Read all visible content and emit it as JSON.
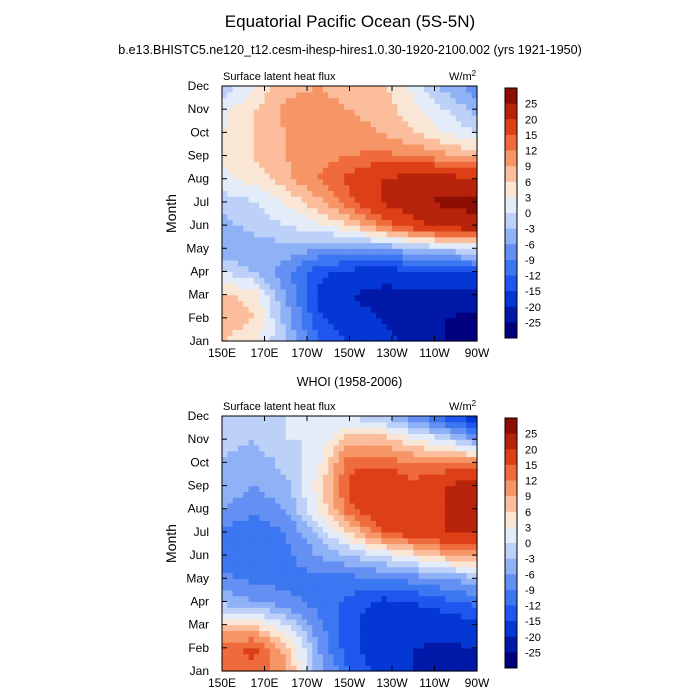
{
  "figure": {
    "title": "Equatorial Pacific Ocean (5S-5N)",
    "subtitle": "b.e13.BHISTC5.ne120_t12.cesm-ihesp-hires1.0.30-1920-2100.002 (yrs 1921-1950)"
  },
  "chart_data": [
    {
      "type": "heatmap",
      "title": "",
      "variable_label": "Surface latent heat flux",
      "units_label": "W/m",
      "units_superscript": "2",
      "xlabel": "",
      "ylabel": "Month",
      "x_ticks": [
        "150E",
        "170E",
        "170W",
        "150W",
        "130W",
        "110W",
        "90W"
      ],
      "x_tick_lon": [
        150,
        170,
        190,
        210,
        230,
        250,
        270
      ],
      "xlim": [
        150,
        270
      ],
      "y_ticks": [
        "Jan",
        "Feb",
        "Mar",
        "Apr",
        "May",
        "Jun",
        "Jul",
        "Aug",
        "Sep",
        "Oct",
        "Nov",
        "Dec"
      ],
      "ylim": [
        1,
        12
      ],
      "contour_levels": [
        -25,
        -20,
        -15,
        -12,
        -9,
        -6,
        -3,
        0,
        3,
        6,
        9,
        12,
        15,
        20,
        25
      ],
      "colorbar_labels": [
        "25",
        "20",
        "15",
        "12",
        "9",
        "6",
        "3",
        "0",
        "-3",
        "-6",
        "-9",
        "-12",
        "-15",
        "-20",
        "-25"
      ],
      "colors": [
        "#00007f",
        "#0019a8",
        "#0437d4",
        "#1f57ee",
        "#3c77f2",
        "#648ff3",
        "#8fb1f6",
        "#bcd0f8",
        "#e4ecfa",
        "#fae6d4",
        "#fbbd9b",
        "#f69566",
        "#ef6a3c",
        "#dd3f17",
        "#b7220a",
        "#8c0e02"
      ],
      "lon": [
        150,
        165,
        180,
        195,
        210,
        225,
        240,
        255,
        270
      ],
      "months": [
        1,
        2,
        3,
        4,
        5,
        6,
        7,
        8,
        9,
        10,
        11,
        12
      ],
      "values": [
        [
          6,
          4,
          -3,
          -12,
          -15,
          -18,
          -22,
          -25,
          -26
        ],
        [
          8,
          6,
          -4,
          -14,
          -18,
          -20,
          -23,
          -25,
          -26
        ],
        [
          7,
          5,
          -6,
          -16,
          -20,
          -22,
          -22,
          -23,
          -23
        ],
        [
          0,
          -3,
          -8,
          -14,
          -16,
          -17,
          -16,
          -15,
          -14
        ],
        [
          -6,
          -5,
          -4,
          -6,
          -7,
          -6,
          -4,
          -2,
          0
        ],
        [
          -4,
          -2,
          0,
          2,
          6,
          12,
          18,
          22,
          24
        ],
        [
          -2,
          0,
          3,
          8,
          14,
          20,
          24,
          26,
          26
        ],
        [
          2,
          4,
          8,
          12,
          16,
          20,
          22,
          22,
          20
        ],
        [
          4,
          6,
          9,
          11,
          12,
          13,
          12,
          10,
          8
        ],
        [
          3,
          6,
          9,
          10,
          10,
          9,
          6,
          3,
          0
        ],
        [
          2,
          6,
          10,
          10,
          9,
          8,
          4,
          0,
          -4
        ],
        [
          -3,
          3,
          8,
          9,
          8,
          7,
          2,
          -4,
          -8
        ]
      ]
    },
    {
      "type": "heatmap",
      "title": "WHOI (1958-2006)",
      "variable_label": "Surface latent heat flux",
      "units_label": "W/m",
      "units_superscript": "2",
      "xlabel": "",
      "ylabel": "Month",
      "x_ticks": [
        "150E",
        "170E",
        "170W",
        "150W",
        "130W",
        "110W",
        "90W"
      ],
      "x_tick_lon": [
        150,
        170,
        190,
        210,
        230,
        250,
        270
      ],
      "xlim": [
        150,
        270
      ],
      "y_ticks": [
        "Jan",
        "Feb",
        "Mar",
        "Apr",
        "May",
        "Jun",
        "Jul",
        "Aug",
        "Sep",
        "Oct",
        "Nov",
        "Dec"
      ],
      "ylim": [
        1,
        12
      ],
      "contour_levels": [
        -25,
        -20,
        -15,
        -12,
        -9,
        -6,
        -3,
        0,
        3,
        6,
        9,
        12,
        15,
        20,
        25
      ],
      "colorbar_labels": [
        "25",
        "20",
        "15",
        "12",
        "9",
        "6",
        "3",
        "0",
        "-3",
        "-6",
        "-9",
        "-12",
        "-15",
        "-20",
        "-25"
      ],
      "colors": [
        "#00007f",
        "#0019a8",
        "#0437d4",
        "#1f57ee",
        "#3c77f2",
        "#648ff3",
        "#8fb1f6",
        "#bcd0f8",
        "#e4ecfa",
        "#fae6d4",
        "#fbbd9b",
        "#f69566",
        "#ef6a3c",
        "#dd3f17",
        "#b7220a",
        "#8c0e02"
      ],
      "lon": [
        150,
        165,
        180,
        195,
        210,
        225,
        240,
        255,
        270
      ],
      "months": [
        1,
        2,
        3,
        4,
        5,
        6,
        7,
        8,
        9,
        10,
        11,
        12
      ],
      "values": [
        [
          12,
          14,
          10,
          -4,
          -12,
          -16,
          -20,
          -22,
          -22
        ],
        [
          14,
          16,
          8,
          -6,
          -14,
          -18,
          -20,
          -21,
          -20
        ],
        [
          6,
          6,
          0,
          -8,
          -14,
          -18,
          -18,
          -18,
          -16
        ],
        [
          -4,
          -6,
          -8,
          -10,
          -13,
          -16,
          -15,
          -13,
          -11
        ],
        [
          -8,
          -10,
          -10,
          -10,
          -10,
          -9,
          -8,
          -6,
          -4
        ],
        [
          -12,
          -12,
          -10,
          -6,
          -3,
          0,
          4,
          8,
          10
        ],
        [
          -10,
          -12,
          -9,
          -3,
          6,
          14,
          18,
          20,
          21
        ],
        [
          -6,
          -8,
          -6,
          3,
          14,
          20,
          20,
          20,
          20
        ],
        [
          -4,
          -6,
          -4,
          4,
          16,
          20,
          16,
          20,
          24
        ],
        [
          -3,
          -5,
          -2,
          2,
          14,
          14,
          12,
          12,
          12
        ],
        [
          -2,
          -3,
          0,
          0,
          8,
          8,
          4,
          0,
          -6
        ],
        [
          -2,
          -2,
          0,
          0,
          0,
          -3,
          -8,
          -14,
          -18
        ]
      ]
    }
  ]
}
